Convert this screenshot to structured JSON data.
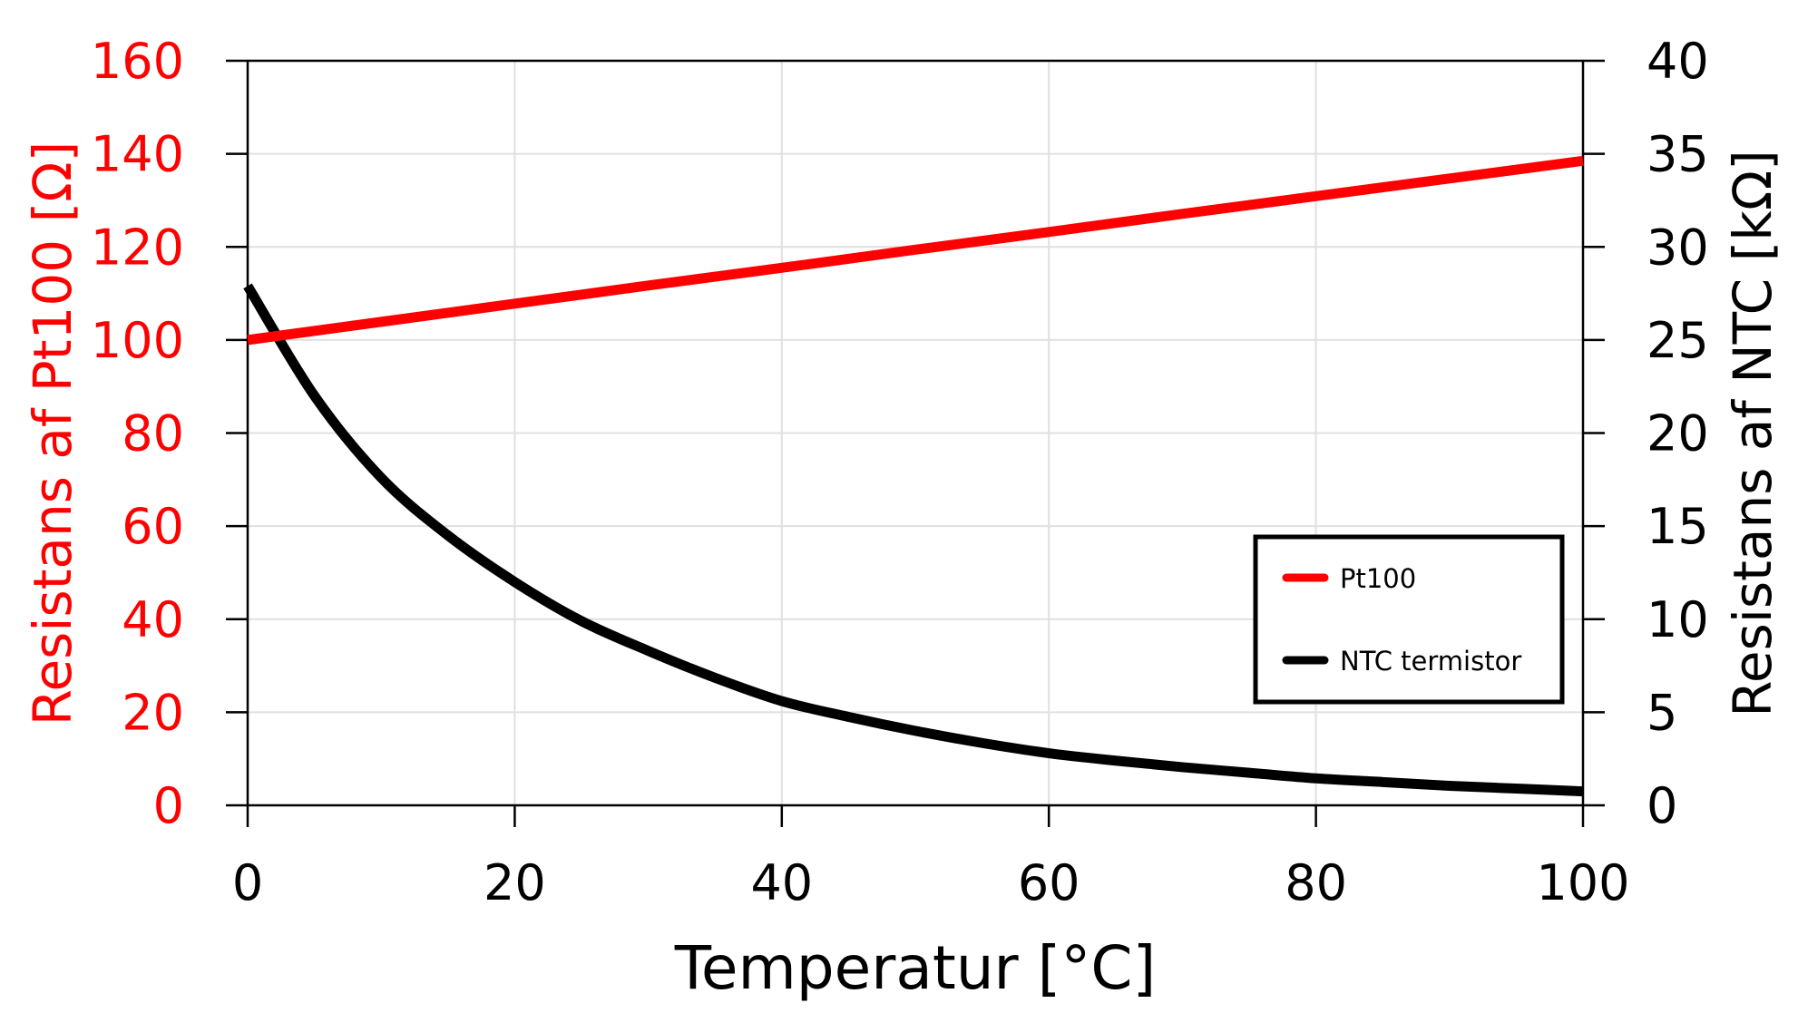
{
  "chart_data": {
    "type": "line",
    "title": "",
    "xlabel": "Temperatur [°C]",
    "ylabel_left": "Resistans af Pt100 [Ω]",
    "ylabel_right": "Resistans af NTC [kΩ]",
    "xlim": [
      0,
      100
    ],
    "ylim_left": [
      0,
      160
    ],
    "ylim_right": [
      0,
      40
    ],
    "x_ticks": [
      "0",
      "20",
      "40",
      "60",
      "80",
      "100"
    ],
    "y_ticks_left": [
      "0",
      "20",
      "40",
      "60",
      "80",
      "100",
      "120",
      "140",
      "160"
    ],
    "y_ticks_right": [
      "0",
      "5",
      "10",
      "15",
      "20",
      "25",
      "30",
      "35",
      "40"
    ],
    "grid": true,
    "legend_position": "lower-right",
    "colors": {
      "left_axis": "#ff0000",
      "right_axis": "#000000",
      "grid": "#e0e0e0"
    },
    "series": [
      {
        "name": "Pt100",
        "axis": "left",
        "color": "#ff0000",
        "x": [
          0,
          10,
          20,
          30,
          40,
          50,
          60,
          70,
          80,
          90,
          100
        ],
        "values": [
          100.0,
          103.9,
          107.8,
          111.7,
          115.5,
          119.4,
          123.2,
          127.1,
          130.9,
          134.7,
          138.5
        ]
      },
      {
        "name": "NTC termistor",
        "axis": "right",
        "color": "#000000",
        "x": [
          0,
          5,
          10,
          15,
          20,
          25,
          30,
          35,
          40,
          45,
          50,
          55,
          60,
          65,
          70,
          75,
          80,
          85,
          90,
          95,
          100
        ],
        "values": [
          27.9,
          22.0,
          17.6,
          14.5,
          12.0,
          9.9,
          8.3,
          6.85,
          5.6,
          4.75,
          4.0,
          3.35,
          2.8,
          2.4,
          2.05,
          1.75,
          1.45,
          1.25,
          1.05,
          0.9,
          0.75
        ]
      }
    ]
  }
}
